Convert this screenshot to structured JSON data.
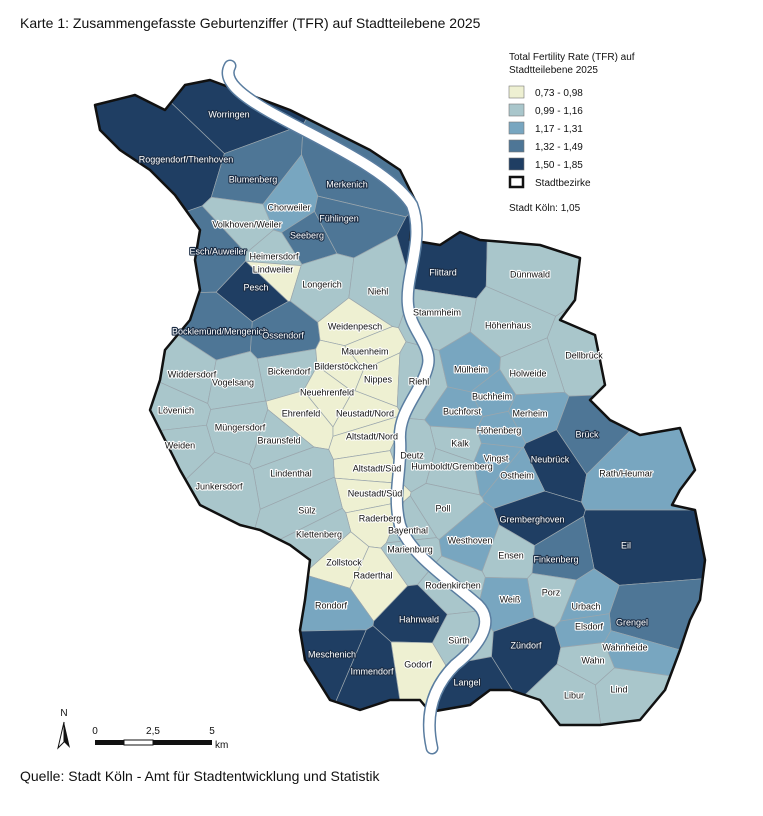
{
  "title": "Karte 1: Zusammengefasste  Geburtenziffer  (TFR) auf Stadtteilebene 2025",
  "legend": {
    "title": [
      "Total Fertility Rate (TFR) auf",
      "Stadtteilebene 2025"
    ],
    "classes": [
      {
        "label": "0,73 - 0,98",
        "color": "#eef0d2"
      },
      {
        "label": "0,99 - 1,16",
        "color": "#a9c6cb"
      },
      {
        "label": "1,17 - 1,31",
        "color": "#78a6c0"
      },
      {
        "label": "1,32 - 1,49",
        "color": "#4e7696"
      },
      {
        "label": "1,50 - 1,85",
        "color": "#1f3e63"
      }
    ],
    "boundary": "Stadtbezirke",
    "city_total": "Stadt Köln: 1,05"
  },
  "districts": [
    {
      "name": "Worringen",
      "class": 4
    },
    {
      "name": "Roggendorf/Thenhoven",
      "class": 4
    },
    {
      "name": "Blumenberg",
      "class": 3
    },
    {
      "name": "Merkenich",
      "class": 3
    },
    {
      "name": "Chorweiler",
      "class": 2
    },
    {
      "name": "Volkhoven/Weiler",
      "class": 1
    },
    {
      "name": "Fühlingen",
      "class": 3
    },
    {
      "name": "Seeberg",
      "class": 3
    },
    {
      "name": "Esch/Auweiler",
      "class": 3
    },
    {
      "name": "Heimersdorf",
      "class": 1
    },
    {
      "name": "Lindweiler",
      "class": 0
    },
    {
      "name": "Pesch",
      "class": 4
    },
    {
      "name": "Longerich",
      "class": 1
    },
    {
      "name": "Niehl",
      "class": 1
    },
    {
      "name": "Flittard",
      "class": 4
    },
    {
      "name": "Dünnwald",
      "class": 1
    },
    {
      "name": "Stammheim",
      "class": 1
    },
    {
      "name": "Höhenhaus",
      "class": 1
    },
    {
      "name": "Bocklemünd/Mengenich",
      "class": 3
    },
    {
      "name": "Ossendorf",
      "class": 3
    },
    {
      "name": "Weidenpesch",
      "class": 0
    },
    {
      "name": "Mauenheim",
      "class": 0
    },
    {
      "name": "Dellbrück",
      "class": 1
    },
    {
      "name": "Widdersdorf",
      "class": 1
    },
    {
      "name": "Bickendorf",
      "class": 1
    },
    {
      "name": "Bilderstöckchen",
      "class": 0
    },
    {
      "name": "Nippes",
      "class": 0
    },
    {
      "name": "Riehl",
      "class": 1
    },
    {
      "name": "Mülheim",
      "class": 2
    },
    {
      "name": "Holweide",
      "class": 1
    },
    {
      "name": "Vogelsang",
      "class": 1
    },
    {
      "name": "Neuehrenfeld",
      "class": 0
    },
    {
      "name": "Buchheim",
      "class": 2
    },
    {
      "name": "Lövenich",
      "class": 1
    },
    {
      "name": "Ehrenfeld",
      "class": 0
    },
    {
      "name": "Neustadt/Nord",
      "class": 0
    },
    {
      "name": "Buchforst",
      "class": 2
    },
    {
      "name": "Merheim",
      "class": 2
    },
    {
      "name": "Altstadt/Nord",
      "class": 0
    },
    {
      "name": "Müngersdorf",
      "class": 1
    },
    {
      "name": "Weiden",
      "class": 1
    },
    {
      "name": "Braunsfeld",
      "class": 1
    },
    {
      "name": "Kalk",
      "class": 1
    },
    {
      "name": "Höhenberg",
      "class": 2
    },
    {
      "name": "Brück",
      "class": 3
    },
    {
      "name": "Deutz",
      "class": 1
    },
    {
      "name": "Neubrück",
      "class": 4
    },
    {
      "name": "Vingst",
      "class": 2
    },
    {
      "name": "Humboldt/Gremberg",
      "class": 1
    },
    {
      "name": "Altstadt/Süd",
      "class": 0
    },
    {
      "name": "Lindenthal",
      "class": 1
    },
    {
      "name": "Ostheim",
      "class": 2
    },
    {
      "name": "Rath/Heumar",
      "class": 2
    },
    {
      "name": "Junkersdorf",
      "class": 1
    },
    {
      "name": "Neustadt/Süd",
      "class": 0
    },
    {
      "name": "Sülz",
      "class": 1
    },
    {
      "name": "Poll",
      "class": 1
    },
    {
      "name": "Raderberg",
      "class": 0
    },
    {
      "name": "Gremberghoven",
      "class": 4
    },
    {
      "name": "Bayenthal",
      "class": 1
    },
    {
      "name": "Klettenberg",
      "class": 1
    },
    {
      "name": "Westhoven",
      "class": 2
    },
    {
      "name": "Eil",
      "class": 4
    },
    {
      "name": "Marienburg",
      "class": 1
    },
    {
      "name": "Ensen",
      "class": 1
    },
    {
      "name": "Finkenberg",
      "class": 3
    },
    {
      "name": "Zollstock",
      "class": 0
    },
    {
      "name": "Raderthal",
      "class": 0
    },
    {
      "name": "Rodenkirchen",
      "class": 1
    },
    {
      "name": "Porz",
      "class": 1
    },
    {
      "name": "Rondorf",
      "class": 2
    },
    {
      "name": "Weiß",
      "class": 2
    },
    {
      "name": "Urbach",
      "class": 2
    },
    {
      "name": "Hahnwald",
      "class": 4
    },
    {
      "name": "Grengel",
      "class": 3
    },
    {
      "name": "Elsdorf",
      "class": 2
    },
    {
      "name": "Sürth",
      "class": 1
    },
    {
      "name": "Zündorf",
      "class": 4
    },
    {
      "name": "Wahnheide",
      "class": 2
    },
    {
      "name": "Meschenich",
      "class": 4
    },
    {
      "name": "Godorf",
      "class": 0
    },
    {
      "name": "Wahn",
      "class": 1
    },
    {
      "name": "Immendorf",
      "class": 4
    },
    {
      "name": "Langel",
      "class": 4
    },
    {
      "name": "Lind",
      "class": 1
    },
    {
      "name": "Libur",
      "class": 1
    }
  ],
  "scale": {
    "north": "N",
    "ticks": [
      "0",
      "2,5",
      "5"
    ],
    "unit": "km"
  },
  "source": "Quelle: Stadt Köln - Amt für Stadtentwicklung und Statistik"
}
